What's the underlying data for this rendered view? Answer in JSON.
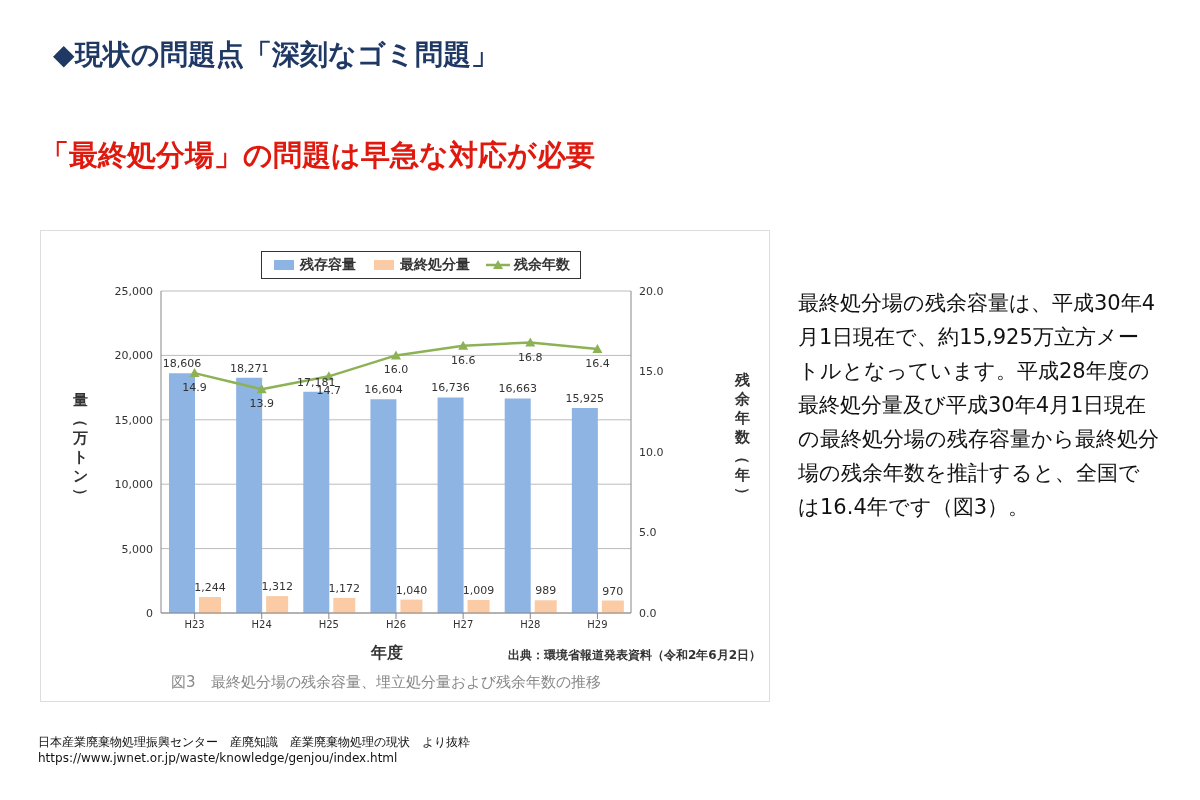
{
  "chart_data": {
    "type": "bar",
    "title": "◆現状の問題点「深刻なゴミ問題」",
    "subtitle": "「最終処分場」の問題は早急な対応が必要",
    "xlabel": "年度",
    "ylabel": "量（万トン）",
    "y2label": "残余年数（年）",
    "categories": [
      "H23",
      "H24",
      "H25",
      "H26",
      "H27",
      "H28",
      "H29"
    ],
    "series": [
      {
        "name": "残存容量",
        "color": "#8eb4e3",
        "values": [
          18606,
          18271,
          17181,
          16604,
          16736,
          16663,
          15925
        ],
        "value_labels": [
          "18,606",
          "18,271",
          "17,181",
          "16,604",
          "16,736",
          "16,663",
          "15,925"
        ]
      },
      {
        "name": "最終処分量",
        "color": "#fbcba6",
        "values": [
          1244,
          1312,
          1172,
          1040,
          1009,
          989,
          970
        ],
        "value_labels": [
          "1,244",
          "1,312",
          "1,172",
          "1,040",
          "1,009",
          "989",
          "970"
        ]
      },
      {
        "name": "残余年数",
        "type": "line",
        "axis": "y2",
        "color": "#8db255",
        "marker": "triangle",
        "values": [
          14.9,
          13.9,
          14.7,
          16.0,
          16.6,
          16.8,
          16.4
        ],
        "value_labels": [
          "14.9",
          "13.9",
          "14.7",
          "16.0",
          "16.6",
          "16.8",
          "16.4"
        ]
      }
    ],
    "ylim": [
      0,
      25000
    ],
    "yticks": [
      0,
      {
        "value": 5000,
        "label": "5,000"
      },
      {
        "value": 10000,
        "label": "10,000"
      },
      {
        "value": 15000,
        "label": "15,000"
      },
      {
        "value": 20000,
        "label": "20,000"
      },
      {
        "value": 25000,
        "label": "25,000"
      }
    ],
    "y2lim": [
      0,
      20
    ],
    "y2ticks": [
      {
        "value": 0,
        "label": "0.0"
      },
      {
        "value": 5,
        "label": "5.0"
      },
      {
        "value": 10,
        "label": "10.0"
      },
      {
        "value": 15,
        "label": "15.0"
      },
      {
        "value": 20,
        "label": "20.0"
      }
    ],
    "grid": "y",
    "legend": "top",
    "annotations": [
      "出典：環境省報道発表資料（令和2年6月2日）",
      "図3　最終処分場の残余容量、埋立処分量および残余年数の推移",
      "最終処分場の残余容量は、平成30年4月1日現在で、約15,925万立方メートルとなっています。平成28年度の最終処分量及び平成30年4月1日現在の最終処分場の残存容量から最終処分場の残余年数を推計すると、全国では16.4年です（図3）。",
      "日本産業廃棄物処理振興センター　産廃知識　産業廃棄物処理の現状　より抜粋",
      "https://www.jwnet.or.jp/waste/knowledge/genjou/index.html"
    ]
  }
}
